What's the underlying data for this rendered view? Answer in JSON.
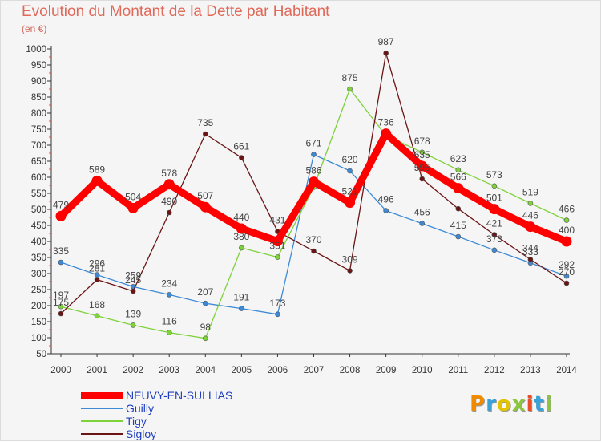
{
  "header": {
    "title": "Evolution du Montant de la Dette par Habitant",
    "unit": "(en €)"
  },
  "logo": {
    "text": "Proxiti",
    "letter_colors": [
      "#f08b00",
      "#3aa0d8",
      "#e2c300",
      "#8cc63f",
      "#e94e2a",
      "#3aa0d8",
      "#8cc63f"
    ]
  },
  "chart_data": {
    "type": "line",
    "title": "Evolution du Montant de la Dette par Habitant",
    "ylabel": "(en €)",
    "xlabel": "",
    "x": [
      "2000",
      "2001",
      "2002",
      "2003",
      "2004",
      "2005",
      "2006",
      "2007",
      "2008",
      "2009",
      "2010",
      "2011",
      "2012",
      "2013",
      "2014"
    ],
    "ylim": [
      50,
      1000
    ],
    "yticks": [
      50,
      100,
      150,
      200,
      250,
      300,
      350,
      400,
      450,
      500,
      550,
      600,
      650,
      700,
      750,
      800,
      850,
      900,
      950,
      1000
    ],
    "grid": false,
    "legend_position": "bottom-left",
    "series": [
      {
        "name": "NEUVY-EN-SULLIAS",
        "color": "#ff0000",
        "values": [
          479,
          589,
          504,
          578,
          507,
          440,
          401,
          586,
          521,
          736,
          635,
          566,
          501,
          446,
          400
        ]
      },
      {
        "name": "Guilly",
        "color": "#3c8ad6",
        "values": [
          335,
          296,
          259,
          234,
          207,
          191,
          173,
          671,
          620,
          496,
          456,
          415,
          373,
          333,
          292
        ]
      },
      {
        "name": "Tigy",
        "color": "#7ed23a",
        "values": [
          197,
          168,
          139,
          116,
          98,
          380,
          351,
          569,
          875,
          730,
          678,
          623,
          573,
          519,
          466
        ]
      },
      {
        "name": "Sigloy",
        "color": "#6b1414",
        "values": [
          175,
          281,
          245,
          490,
          735,
          661,
          431,
          370,
          309,
          987,
          595,
          502,
          421,
          344,
          270
        ]
      }
    ],
    "data_labels": [
      [
        "479",
        "589",
        "504",
        "578",
        "507",
        "440",
        "",
        "586",
        "521",
        "736",
        "635",
        "566",
        "501",
        "446",
        "400"
      ],
      [
        "335",
        "296",
        "259",
        "234",
        "207",
        "191",
        "173",
        "671",
        "620",
        "496",
        "456",
        "415",
        "373",
        "333",
        "292"
      ],
      [
        "197",
        "168",
        "139",
        "116",
        "98",
        "380",
        "351",
        "",
        "875",
        "",
        "678",
        "623",
        "573",
        "519",
        "466"
      ],
      [
        "175",
        "281",
        "245",
        "490",
        "735",
        "661",
        "431",
        "370",
        "309",
        "987",
        "595",
        "",
        "421",
        "344",
        "270"
      ]
    ]
  }
}
